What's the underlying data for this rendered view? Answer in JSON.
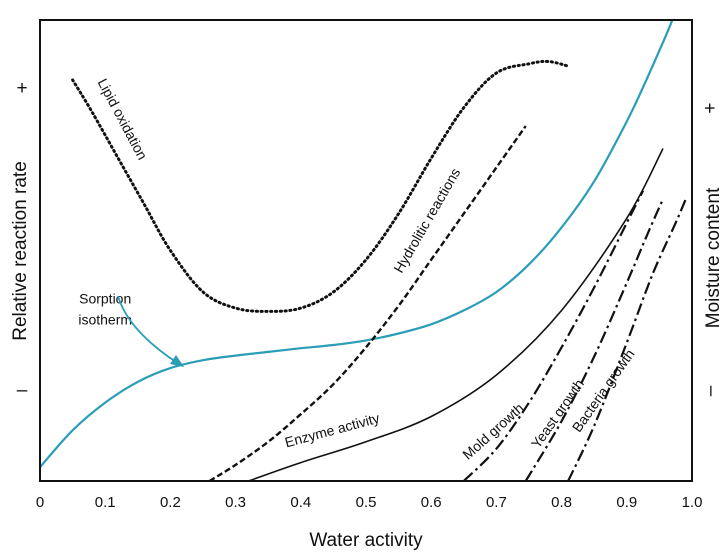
{
  "chart_data": {
    "type": "line",
    "xlabel": "Water activity",
    "ylabel": "Relative reaction rate",
    "y2label": "Moisture content",
    "xlim": [
      0,
      1.0
    ],
    "x_ticks": [
      "0",
      "0.1",
      "0.2",
      "0.3",
      "0.4",
      "0.5",
      "0.6",
      "0.7",
      "0.8",
      "0.9",
      "1.0"
    ],
    "y_tick_plus": "+",
    "y_tick_minus": "–",
    "y2_tick_plus": "+",
    "y2_tick_minus": "–",
    "colors": {
      "sorption": "#2a9db8",
      "ink": "#111111"
    },
    "series": [
      {
        "name": "Lipid oxidation",
        "style": "dotted",
        "points": [
          [
            0.05,
            0.87
          ],
          [
            0.08,
            0.8
          ],
          [
            0.12,
            0.7
          ],
          [
            0.16,
            0.6
          ],
          [
            0.2,
            0.5
          ],
          [
            0.25,
            0.41
          ],
          [
            0.3,
            0.375
          ],
          [
            0.35,
            0.368
          ],
          [
            0.4,
            0.375
          ],
          [
            0.45,
            0.41
          ],
          [
            0.5,
            0.48
          ],
          [
            0.55,
            0.58
          ],
          [
            0.6,
            0.7
          ],
          [
            0.65,
            0.81
          ],
          [
            0.7,
            0.885
          ],
          [
            0.75,
            0.905
          ],
          [
            0.78,
            0.91
          ],
          [
            0.81,
            0.9
          ]
        ]
      },
      {
        "name": "Sorption isotherm",
        "style": "solid-color",
        "points": [
          [
            0,
            0.03
          ],
          [
            0.05,
            0.11
          ],
          [
            0.1,
            0.17
          ],
          [
            0.15,
            0.215
          ],
          [
            0.2,
            0.245
          ],
          [
            0.25,
            0.262
          ],
          [
            0.3,
            0.272
          ],
          [
            0.35,
            0.28
          ],
          [
            0.4,
            0.288
          ],
          [
            0.45,
            0.295
          ],
          [
            0.5,
            0.305
          ],
          [
            0.55,
            0.32
          ],
          [
            0.6,
            0.34
          ],
          [
            0.65,
            0.37
          ],
          [
            0.7,
            0.41
          ],
          [
            0.75,
            0.47
          ],
          [
            0.8,
            0.55
          ],
          [
            0.85,
            0.65
          ],
          [
            0.9,
            0.78
          ],
          [
            0.93,
            0.87
          ],
          [
            0.955,
            0.95
          ],
          [
            0.97,
            1.0
          ]
        ]
      },
      {
        "name": "Hydrolitic reactions",
        "style": "dashed",
        "points": [
          [
            0.26,
            0.0
          ],
          [
            0.3,
            0.035
          ],
          [
            0.35,
            0.085
          ],
          [
            0.4,
            0.145
          ],
          [
            0.45,
            0.21
          ],
          [
            0.5,
            0.29
          ],
          [
            0.55,
            0.38
          ],
          [
            0.6,
            0.48
          ],
          [
            0.65,
            0.58
          ],
          [
            0.7,
            0.68
          ],
          [
            0.745,
            0.77
          ]
        ]
      },
      {
        "name": "Enzyme activity",
        "style": "solid",
        "points": [
          [
            0.32,
            0.0
          ],
          [
            0.4,
            0.04
          ],
          [
            0.5,
            0.085
          ],
          [
            0.6,
            0.14
          ],
          [
            0.7,
            0.23
          ],
          [
            0.8,
            0.37
          ],
          [
            0.9,
            0.57
          ],
          [
            0.955,
            0.72
          ]
        ]
      },
      {
        "name": "Mold growth",
        "style": "dash-dot",
        "points": [
          [
            0.65,
            0.0
          ],
          [
            0.7,
            0.07
          ],
          [
            0.75,
            0.17
          ],
          [
            0.8,
            0.29
          ],
          [
            0.85,
            0.42
          ],
          [
            0.9,
            0.56
          ],
          [
            0.925,
            0.63
          ]
        ]
      },
      {
        "name": "Yeast growth",
        "style": "dash-dot",
        "points": [
          [
            0.745,
            0.0
          ],
          [
            0.8,
            0.13
          ],
          [
            0.85,
            0.27
          ],
          [
            0.9,
            0.43
          ],
          [
            0.93,
            0.53
          ],
          [
            0.955,
            0.61
          ]
        ]
      },
      {
        "name": "Bacteria growth",
        "style": "dash-dot",
        "points": [
          [
            0.81,
            0.0
          ],
          [
            0.85,
            0.12
          ],
          [
            0.9,
            0.3
          ],
          [
            0.94,
            0.45
          ],
          [
            0.975,
            0.56
          ],
          [
            0.99,
            0.61
          ]
        ]
      }
    ],
    "annotations": [
      {
        "text": "Lipid oxidation",
        "x": 0.12,
        "y": 0.78,
        "rotate": 62
      },
      {
        "text": "Sorption",
        "x": 0.1,
        "y": 0.385,
        "color": "sorption"
      },
      {
        "text": "isotherm",
        "x": 0.1,
        "y": 0.34,
        "color": "sorption"
      },
      {
        "text": "Hydrolitic reactions",
        "x": 0.6,
        "y": 0.56,
        "rotate": -60
      },
      {
        "text": "Enzyme activity",
        "x": 0.45,
        "y": 0.1,
        "rotate": -15
      },
      {
        "text": "Mold growth",
        "x": 0.7,
        "y": 0.1,
        "rotate": -42
      },
      {
        "text": "Yeast growth",
        "x": 0.8,
        "y": 0.14,
        "rotate": -55
      },
      {
        "text": "Bacteria growth",
        "x": 0.87,
        "y": 0.19,
        "rotate": -55
      }
    ]
  }
}
